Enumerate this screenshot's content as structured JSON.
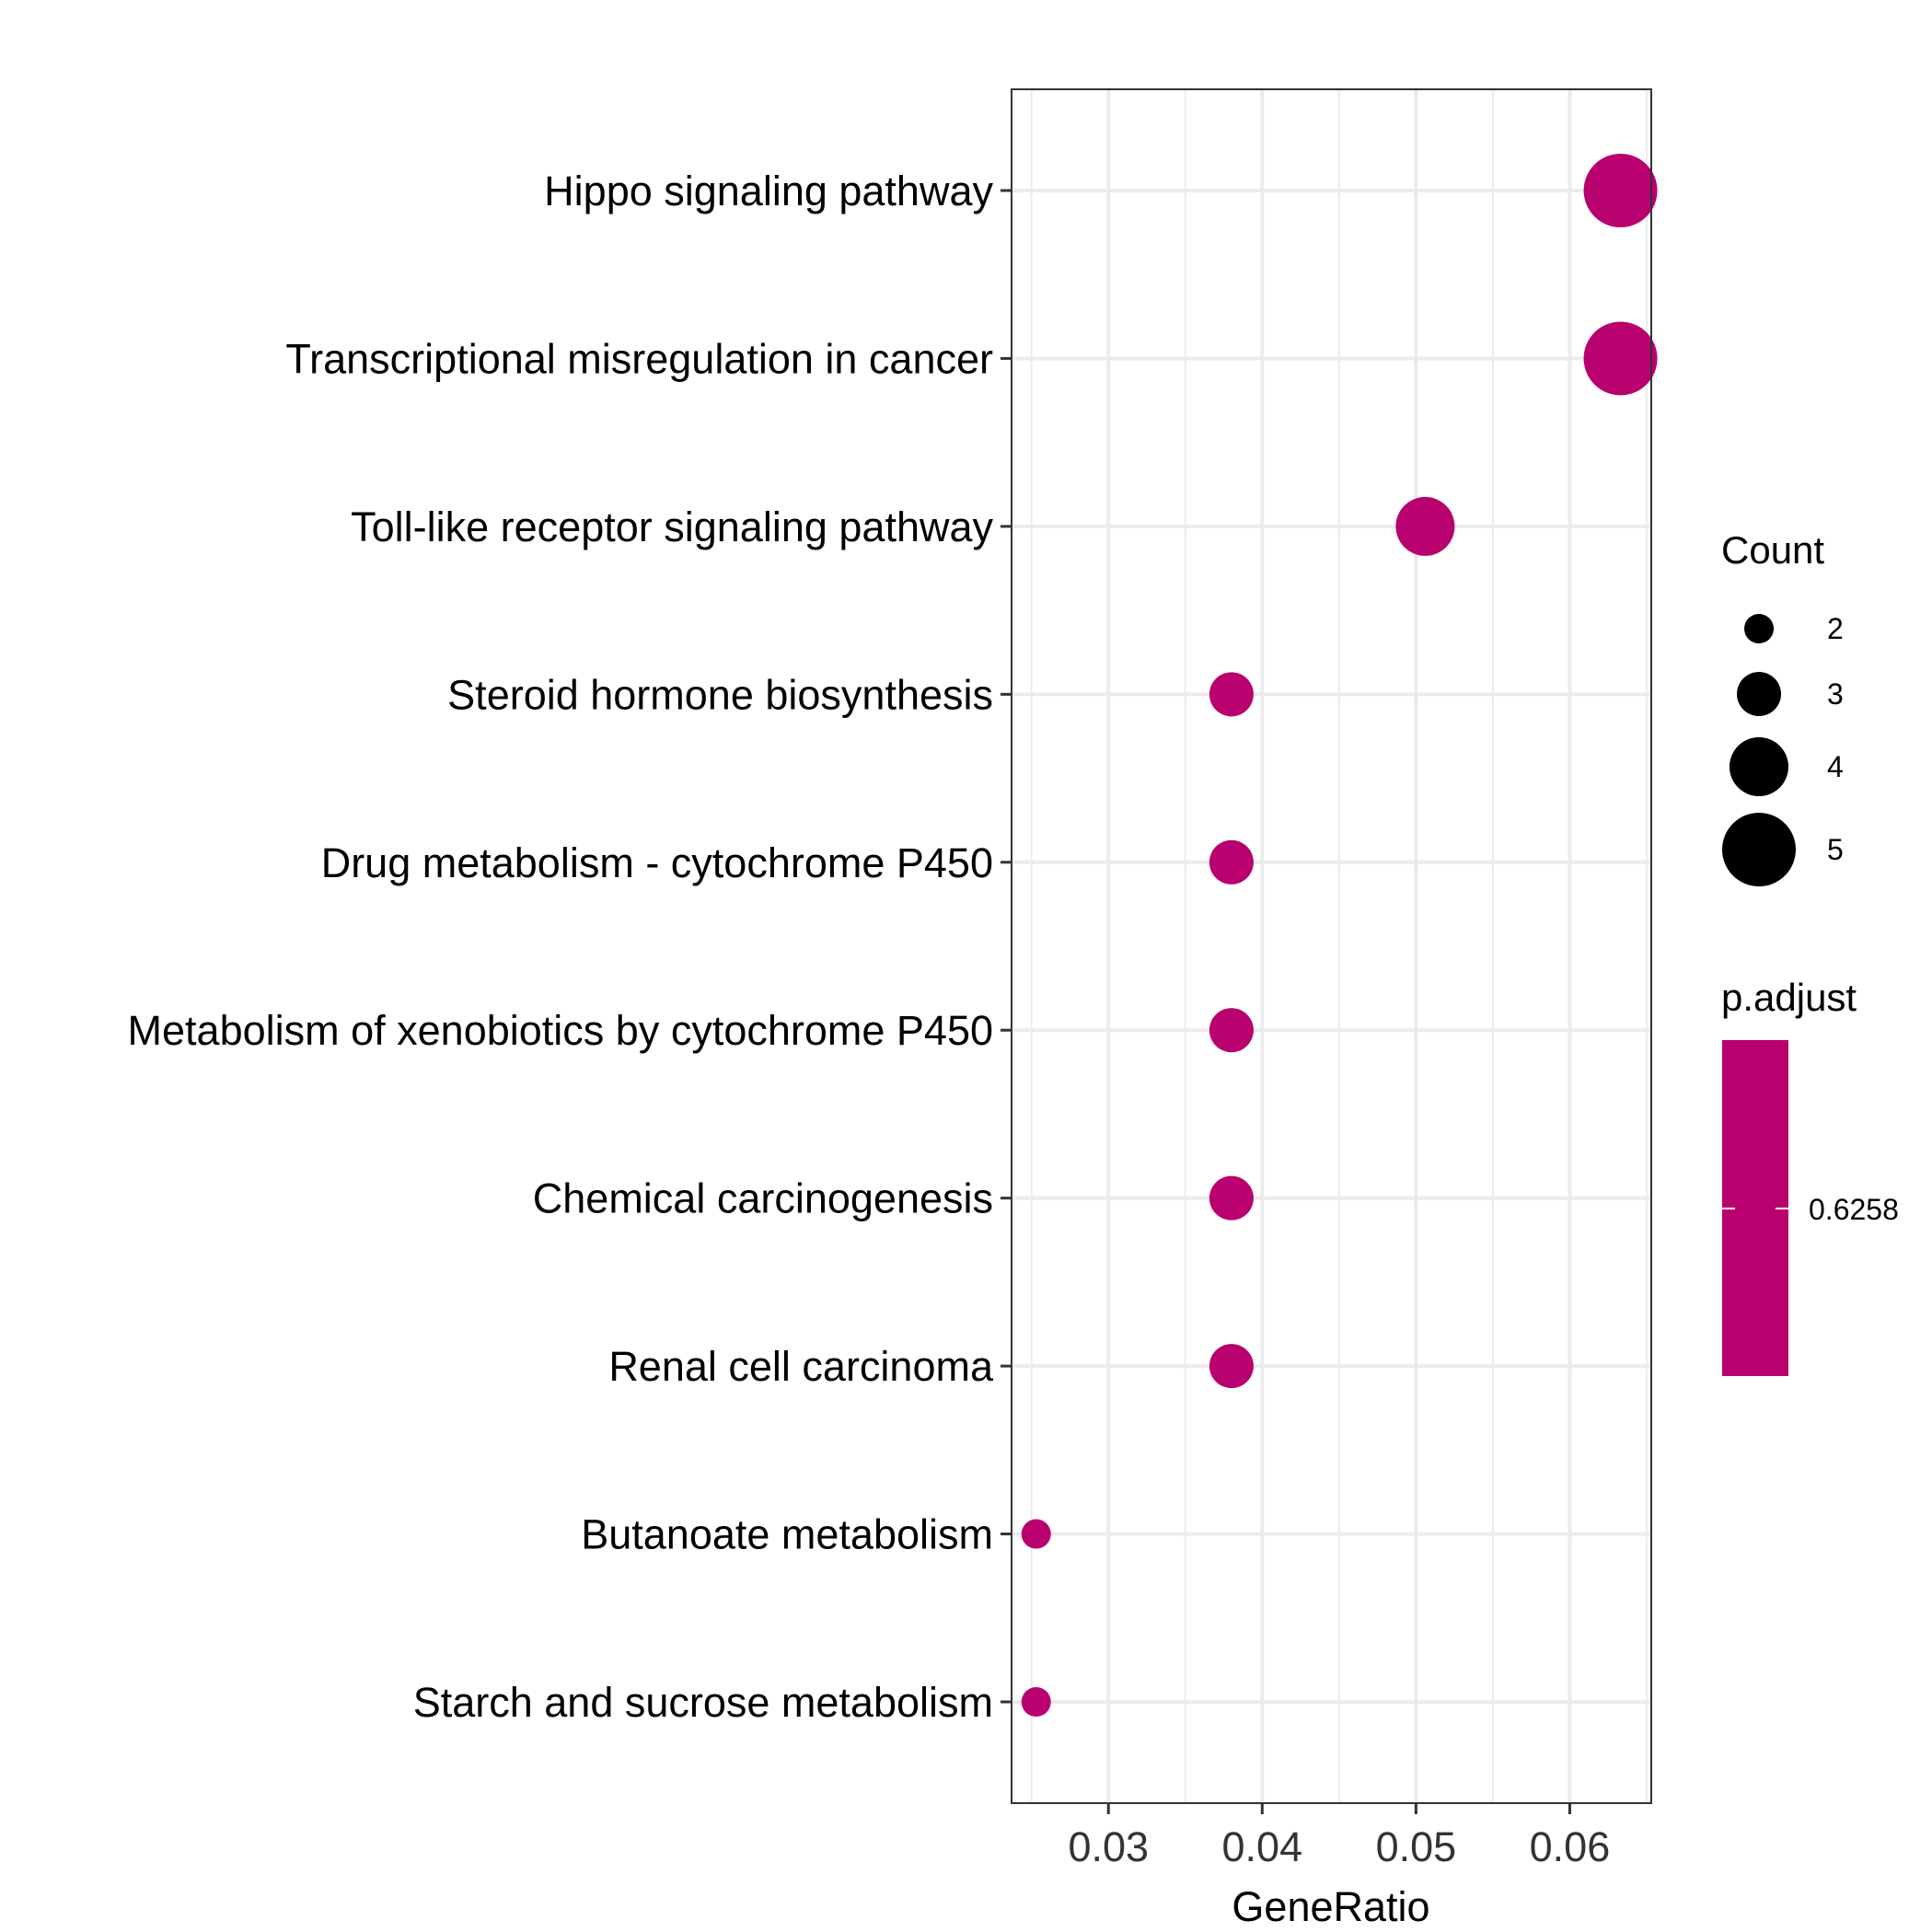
{
  "chart_data": {
    "type": "scatter",
    "title": "",
    "xlabel": "GeneRatio",
    "ylabel": "",
    "xlim": [
      0.0237,
      0.0653
    ],
    "x_ticks": [
      0.03,
      0.04,
      0.05,
      0.06
    ],
    "x_tick_labels": [
      "0.03",
      "0.04",
      "0.05",
      "0.06"
    ],
    "grid": true,
    "points": [
      {
        "label": "Hippo signaling pathway",
        "x": 0.0633,
        "count": 5,
        "p_adjust": 0.6258
      },
      {
        "label": "Transcriptional misregulation in cancer",
        "x": 0.0633,
        "count": 5,
        "p_adjust": 0.6258
      },
      {
        "label": "Toll-like receptor signaling pathway",
        "x": 0.0506,
        "count": 4,
        "p_adjust": 0.6258
      },
      {
        "label": "Steroid hormone biosynthesis",
        "x": 0.038,
        "count": 3,
        "p_adjust": 0.6258
      },
      {
        "label": "Drug metabolism - cytochrome P450",
        "x": 0.038,
        "count": 3,
        "p_adjust": 0.6258
      },
      {
        "label": "Metabolism of xenobiotics by cytochrome P450",
        "x": 0.038,
        "count": 3,
        "p_adjust": 0.6258
      },
      {
        "label": "Chemical carcinogenesis",
        "x": 0.038,
        "count": 3,
        "p_adjust": 0.6258
      },
      {
        "label": "Renal cell carcinoma",
        "x": 0.038,
        "count": 3,
        "p_adjust": 0.6258
      },
      {
        "label": "Butanoate metabolism",
        "x": 0.0253,
        "count": 2,
        "p_adjust": 0.6258
      },
      {
        "label": "Starch and sucrose metabolism",
        "x": 0.0253,
        "count": 2,
        "p_adjust": 0.6258
      }
    ],
    "size_legend": {
      "title": "Count",
      "values": [
        2,
        3,
        4,
        5
      ],
      "labels": [
        "2",
        "3",
        "4",
        "5"
      ]
    },
    "color_legend": {
      "title": "p.adjust",
      "tick_labels": [
        "0.6258"
      ],
      "color": "#B8006F"
    },
    "point_color": "#B8006F",
    "legend_position": "right"
  }
}
